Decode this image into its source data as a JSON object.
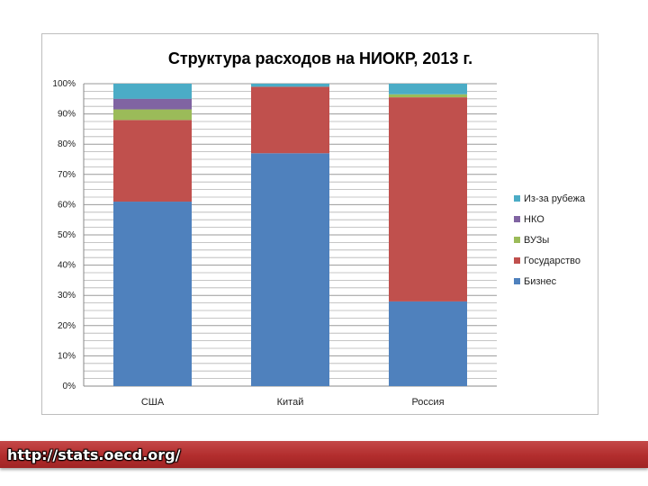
{
  "chart_data": {
    "type": "bar",
    "stacked": true,
    "percent_stacked": true,
    "title": "Структура расходов на НИОКР, 2013 г.",
    "categories": [
      "США",
      "Китай",
      "Россия"
    ],
    "ylim": [
      0,
      100
    ],
    "yticks": [
      "0%",
      "10%",
      "20%",
      "30%",
      "40%",
      "50%",
      "60%",
      "70%",
      "80%",
      "90%",
      "100%"
    ],
    "grid": true,
    "legend_position": "right",
    "series": [
      {
        "name": "Бизнес",
        "color": "#4f81bd",
        "values": [
          61,
          77,
          28
        ]
      },
      {
        "name": "Государство",
        "color": "#c0504d",
        "values": [
          27,
          22,
          67.5
        ]
      },
      {
        "name": "ВУЗы",
        "color": "#9bbb59",
        "values": [
          3.5,
          0,
          1
        ]
      },
      {
        "name": "НКО",
        "color": "#8064a2",
        "values": [
          3.5,
          0,
          0
        ]
      },
      {
        "name": "Из-за рубежа",
        "color": "#4bacc6",
        "values": [
          5,
          1,
          3.5
        ]
      }
    ],
    "legend_order": [
      "Из-за рубежа",
      "НКО",
      "ВУЗы",
      "Государство",
      "Бизнес"
    ]
  },
  "footer": {
    "source_link": "http://stats.oecd.org/"
  }
}
